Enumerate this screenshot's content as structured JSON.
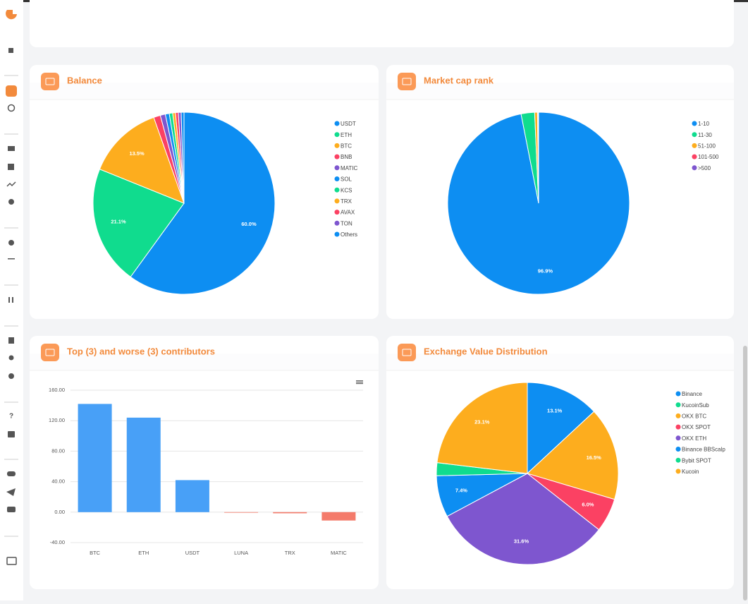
{
  "sidebar": {
    "help": "?"
  },
  "chart_data": [
    {
      "type": "pie",
      "title": "Balance",
      "categories": [
        "USDT",
        "ETH",
        "BTC",
        "BNB",
        "MATIC",
        "SOL",
        "KCS",
        "TRX",
        "AVAX",
        "TON",
        "Others"
      ],
      "values": [
        60.0,
        21.1,
        13.5,
        1.2,
        0.9,
        0.7,
        0.6,
        0.5,
        0.5,
        0.5,
        0.5
      ],
      "value_labels": [
        "60.0%",
        "21.1%",
        "13.5%",
        null,
        null,
        null,
        null,
        null,
        null,
        null,
        null
      ],
      "colors": [
        "#0d8ef2",
        "#10dc8e",
        "#fdad1e",
        "#fb4163",
        "#7e56cf",
        "#0d8ef2",
        "#10dc8e",
        "#fdad1e",
        "#fb4163",
        "#7e56cf",
        "#0d8ef2"
      ]
    },
    {
      "type": "pie",
      "title": "Market cap rank",
      "categories": [
        "1-10",
        "11-30",
        "51-100",
        "101-500",
        ">500"
      ],
      "values": [
        96.9,
        2.4,
        0.5,
        0.1,
        0.1
      ],
      "value_labels": [
        "96.9%",
        null,
        null,
        null,
        null
      ],
      "colors": [
        "#0d8ef2",
        "#10dc8e",
        "#fdad1e",
        "#fb4163",
        "#7e56cf"
      ]
    },
    {
      "type": "bar",
      "title": "Top (3) and worse (3) contributors",
      "categories": [
        "BTC",
        "ETH",
        "USDT",
        "LUNA",
        "TRX",
        "MATIC"
      ],
      "values": [
        142,
        124,
        42,
        -0.5,
        -1.5,
        -11
      ],
      "colors": [
        "#48a0f7",
        "#48a0f7",
        "#48a0f7",
        "#f47b6b",
        "#f47b6b",
        "#f47b6b"
      ],
      "ylim": [
        -40,
        160
      ],
      "yticks": [
        {
          "value": -40,
          "label": "-40.00"
        },
        {
          "value": 0,
          "label": "0.00"
        },
        {
          "value": 40,
          "label": "40.00"
        },
        {
          "value": 80,
          "label": "80.00"
        },
        {
          "value": 120,
          "label": "120.00"
        },
        {
          "value": 160,
          "label": "160.00"
        }
      ],
      "grid": true
    },
    {
      "type": "pie",
      "title": "Exchange Value Distribution",
      "categories": [
        "Binance",
        "KucoinSub",
        "OKX BTC",
        "OKX SPOT",
        "OKX ETH",
        "Binance BBScalp",
        "Bybit SPOT",
        "Kucoin"
      ],
      "values": [
        13.1,
        0,
        16.5,
        6.0,
        31.6,
        7.4,
        2.3,
        23.1
      ],
      "value_labels": [
        "13.1%",
        null,
        "16.5%",
        "6.0%",
        "31.6%",
        "7.4%",
        null,
        "23.1%"
      ],
      "colors": [
        "#0d8ef2",
        "#10dc8e",
        "#fdad1e",
        "#fb4163",
        "#7e56cf",
        "#0d8ef2",
        "#10dc8e",
        "#fdad1e"
      ]
    }
  ]
}
